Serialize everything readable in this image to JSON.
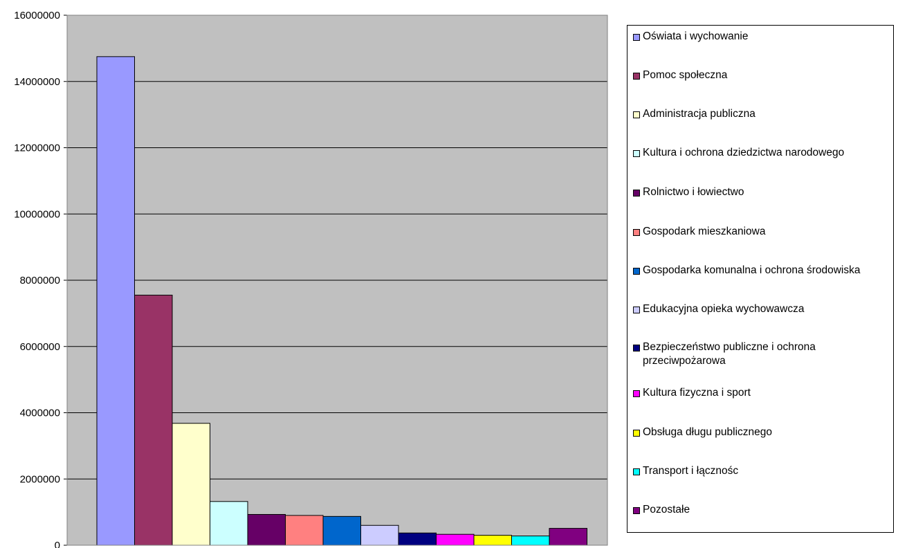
{
  "chart_data": {
    "type": "bar",
    "title": "",
    "xlabel": "",
    "ylabel": "",
    "ylim": [
      0,
      16000000
    ],
    "yticks": [
      "0",
      "2000000",
      "4000000",
      "6000000",
      "8000000",
      "10000000",
      "12000000",
      "14000000",
      "16000000"
    ],
    "grid": true,
    "legend_position": "right",
    "plot_background": "#c0c0c0",
    "series": [
      {
        "name": "Oświata i wychowanie",
        "value": 14750000,
        "color": "#9999ff"
      },
      {
        "name": "Pomoc społeczna",
        "value": 7550000,
        "color": "#993366"
      },
      {
        "name": "Administracja publiczna",
        "value": 3680000,
        "color": "#ffffcc"
      },
      {
        "name": "Kultura i ochrona dziedzictwa narodowego",
        "value": 1320000,
        "color": "#ccffff"
      },
      {
        "name": "Rolnictwo i łowiectwo",
        "value": 930000,
        "color": "#660066"
      },
      {
        "name": "Gospodark mieszkaniowa",
        "value": 900000,
        "color": "#ff8080"
      },
      {
        "name": "Gospodarka komunalna i ochrona środowiska",
        "value": 870000,
        "color": "#0066cc"
      },
      {
        "name": "Edukacyjna opieka wychowawcza",
        "value": 600000,
        "color": "#ccccff"
      },
      {
        "name": "Bezpieczeństwo publiczne i ochrona przeciwpożarowa",
        "value": 370000,
        "color": "#000080"
      },
      {
        "name": "Kultura fizyczna i sport",
        "value": 330000,
        "color": "#ff00ff"
      },
      {
        "name": "Obsługa długu publicznego",
        "value": 300000,
        "color": "#ffff00"
      },
      {
        "name": "Transport i łącznośc",
        "value": 280000,
        "color": "#00ffff"
      },
      {
        "name": "Pozostałe",
        "value": 510000,
        "color": "#800080"
      }
    ]
  }
}
